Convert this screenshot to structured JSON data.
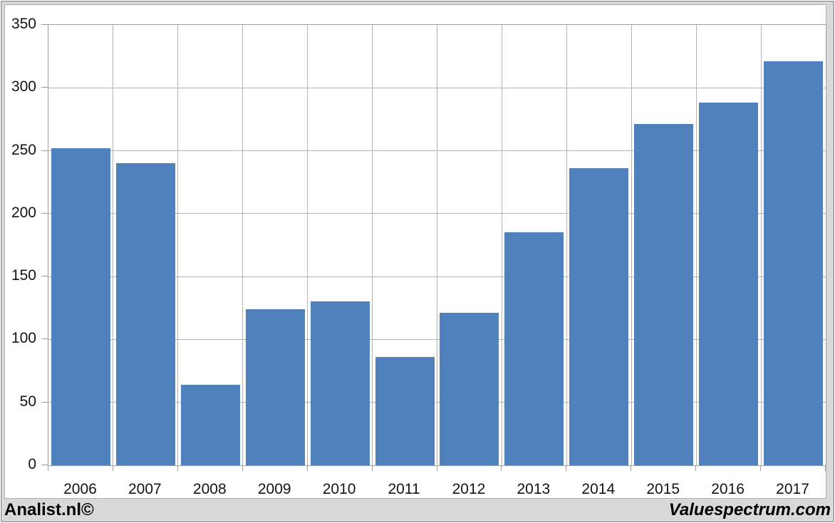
{
  "window": {
    "background": "#d9d9d9",
    "panel_background": "#ffffff"
  },
  "footer": {
    "left": "Analist.nl©",
    "right": "Valuespectrum.com"
  },
  "chart_data": {
    "type": "bar",
    "title": "",
    "categories": [
      "2006",
      "2007",
      "2008",
      "2009",
      "2010",
      "2011",
      "2012",
      "2013",
      "2014",
      "2015",
      "2016",
      "2017"
    ],
    "values": [
      252,
      240,
      64,
      124,
      130,
      86,
      121,
      185,
      236,
      271,
      288,
      321
    ],
    "xlabel": "",
    "ylabel": "",
    "ylim": [
      0,
      350
    ],
    "ytick_step": 50,
    "ytick_labels": [
      "0",
      "50",
      "100",
      "150",
      "200",
      "250",
      "300",
      "350"
    ],
    "grid": true,
    "legend_position": "none",
    "bar_color": "#4f81bd",
    "gridline_color": "#b3b3b3",
    "axis_color": "#9e9e9e",
    "label_color": "#141414"
  }
}
